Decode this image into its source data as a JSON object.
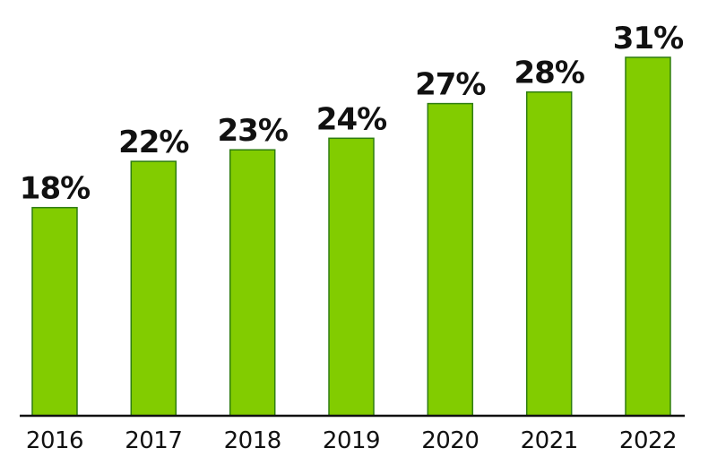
{
  "chart_data": {
    "type": "bar",
    "categories": [
      "2016",
      "2017",
      "2018",
      "2019",
      "2020",
      "2021",
      "2022"
    ],
    "values": [
      18,
      22,
      23,
      24,
      27,
      28,
      31
    ],
    "value_labels": [
      "18%",
      "22%",
      "23%",
      "24%",
      "27%",
      "28%",
      "31%"
    ],
    "title": "",
    "xlabel": "",
    "ylabel": "",
    "unit": "%",
    "grid": false,
    "legend": "none",
    "ylim": [
      0,
      31
    ],
    "colors": {
      "bar_fill": "#82cc00",
      "bar_stroke": "#2e7d11",
      "axis": "#111111",
      "text": "#111111"
    }
  }
}
